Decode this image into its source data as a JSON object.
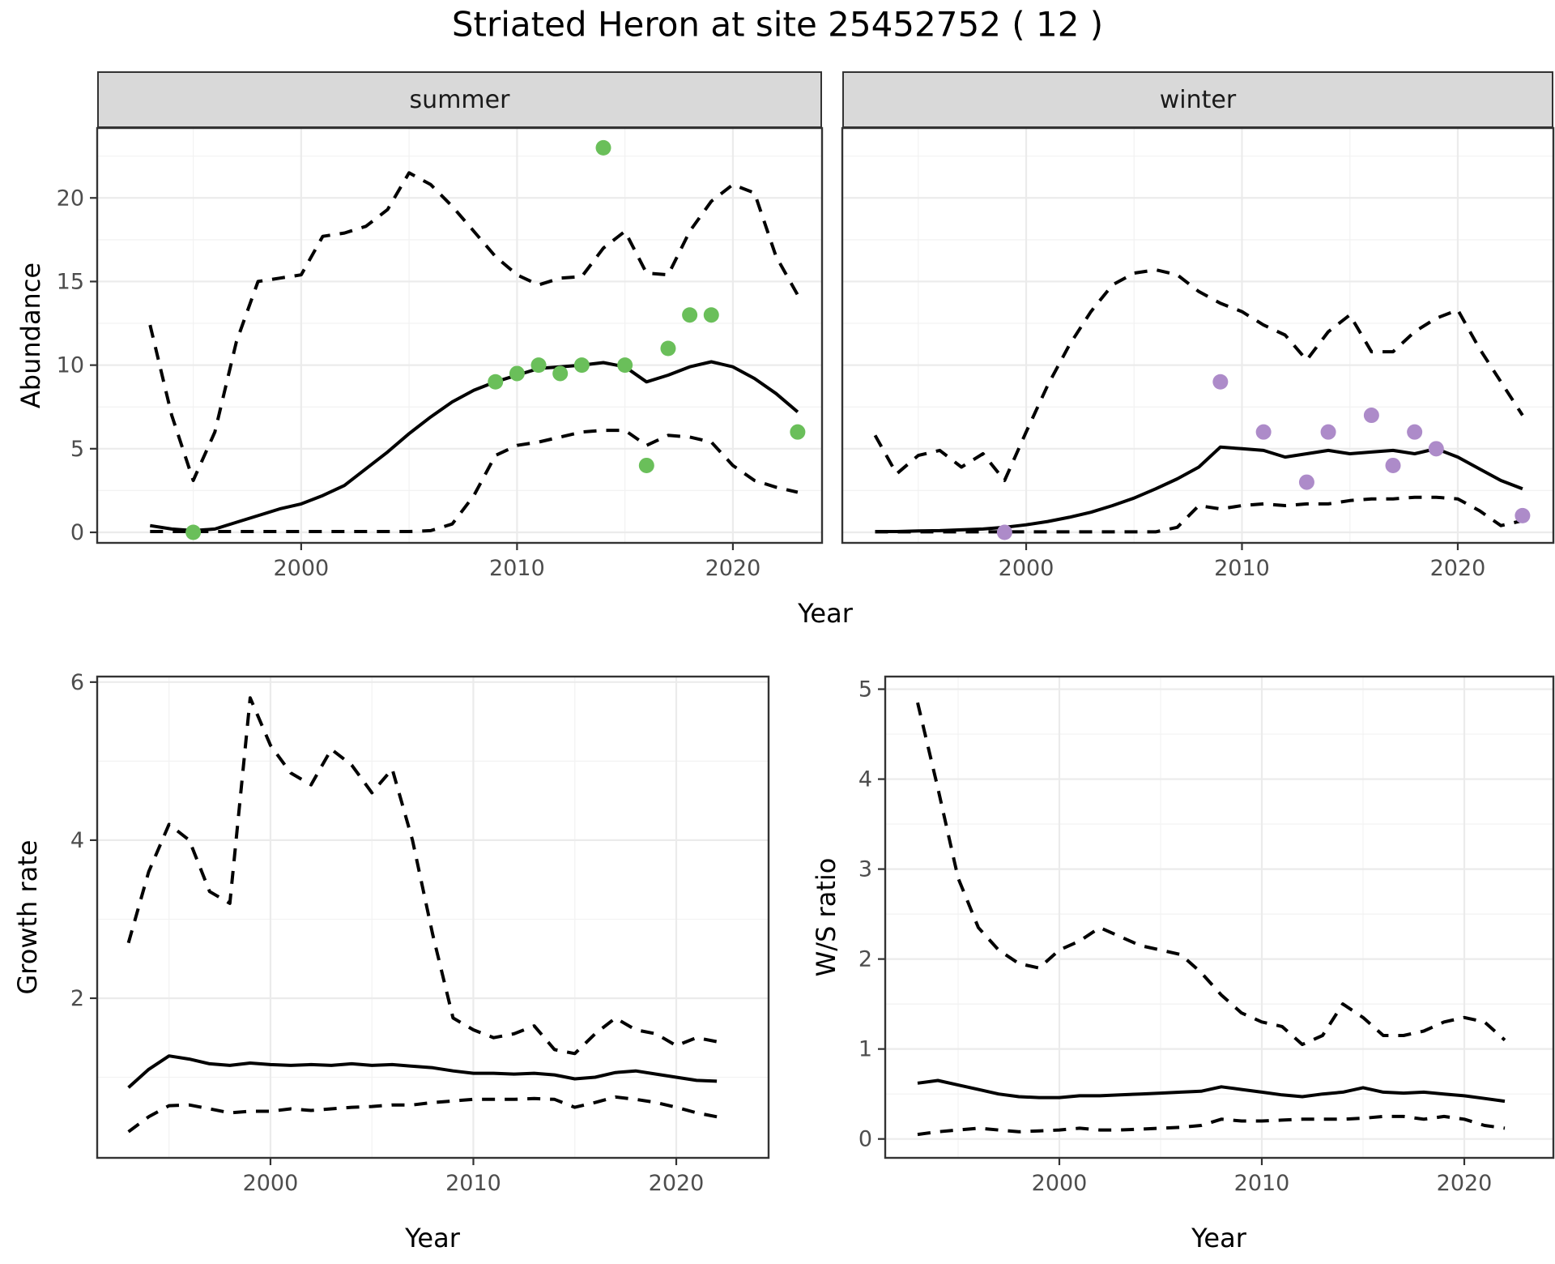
{
  "title": "Striated Heron at site 25452752 ( 12 )",
  "axes": {
    "y_top": "Abundance",
    "x_top": "Year",
    "y_bottom_left": "Growth rate",
    "y_bottom_right": "W/S ratio",
    "x_bottom_left": "Year",
    "x_bottom_right": "Year"
  },
  "colors": {
    "summer_point": "#6abf5a",
    "winter_point": "#ad8bc9",
    "line": "#000000",
    "strip_bg": "#d9d9d9",
    "panel_border": "#333333",
    "grid_major": "#ebebeb",
    "grid_minor": "#f2f2f2",
    "tick_text": "#4d4d4d"
  },
  "chart_data": [
    {
      "type": "line",
      "name": "abundance-summer",
      "facet_label": "summer",
      "xlabel": "Year",
      "ylabel": "Abundance",
      "xlim": [
        1990.55,
        2024.13
      ],
      "ylim": [
        -0.63,
        24.18
      ],
      "x_ticks": [
        2000,
        2010,
        2020
      ],
      "x_minor": [
        1995,
        2005,
        2015
      ],
      "y_ticks": [
        0,
        5,
        10,
        15,
        20
      ],
      "y_minor": [
        2.5,
        7.5,
        12.5,
        17.5,
        22.5
      ],
      "grid": true,
      "legend": "none",
      "series": [
        {
          "name": "upper-95ci",
          "style": "dashed",
          "color": "#000000",
          "x": [
            1993,
            1994,
            1995,
            1996,
            1997,
            1998,
            1999,
            2000,
            2001,
            2002,
            2003,
            2004,
            2005,
            2006,
            2007,
            2008,
            2009,
            2010,
            2011,
            2012,
            2013,
            2014,
            2015,
            2016,
            2017,
            2018,
            2019,
            2020,
            2021,
            2022,
            2023
          ],
          "y": [
            12.4,
            7.0,
            3.1,
            6.0,
            11.4,
            15.0,
            15.2,
            15.4,
            17.7,
            17.9,
            18.3,
            19.3,
            21.5,
            20.8,
            19.5,
            18.0,
            16.5,
            15.4,
            14.8,
            15.2,
            15.3,
            17.0,
            18.0,
            15.5,
            15.4,
            18.0,
            19.8,
            20.8,
            20.3,
            16.5,
            14.2
          ]
        },
        {
          "name": "fit",
          "style": "solid",
          "color": "#000000",
          "x": [
            1993,
            1994,
            1995,
            1996,
            1997,
            1998,
            1999,
            2000,
            2001,
            2002,
            2003,
            2004,
            2005,
            2006,
            2007,
            2008,
            2009,
            2010,
            2011,
            2012,
            2013,
            2014,
            2015,
            2016,
            2017,
            2018,
            2019,
            2020,
            2021,
            2022,
            2023
          ],
          "y": [
            0.4,
            0.2,
            0.1,
            0.2,
            0.6,
            1.0,
            1.4,
            1.7,
            2.2,
            2.8,
            3.8,
            4.8,
            5.9,
            6.9,
            7.8,
            8.5,
            9.0,
            9.4,
            9.8,
            9.9,
            10.0,
            10.15,
            9.9,
            9.0,
            9.4,
            9.9,
            10.2,
            9.9,
            9.2,
            8.3,
            7.2
          ]
        },
        {
          "name": "lower-95ci",
          "style": "dashed",
          "color": "#000000",
          "x": [
            1993,
            1994,
            1995,
            1996,
            1997,
            1998,
            1999,
            2000,
            2001,
            2002,
            2003,
            2004,
            2005,
            2006,
            2007,
            2008,
            2009,
            2010,
            2011,
            2012,
            2013,
            2014,
            2015,
            2016,
            2017,
            2018,
            2019,
            2020,
            2021,
            2022,
            2023
          ],
          "y": [
            0.05,
            0.05,
            0.05,
            0.05,
            0.05,
            0.05,
            0.05,
            0.05,
            0.05,
            0.05,
            0.05,
            0.05,
            0.05,
            0.1,
            0.5,
            2.2,
            4.6,
            5.2,
            5.4,
            5.7,
            6.0,
            6.1,
            6.1,
            5.2,
            5.8,
            5.7,
            5.4,
            4.0,
            3.1,
            2.7,
            2.4
          ]
        },
        {
          "name": "observations",
          "style": "points",
          "color": "#6abf5a",
          "x": [
            1995,
            2009,
            2010,
            2011,
            2012,
            2013,
            2014,
            2015,
            2016,
            2017,
            2018,
            2019,
            2023
          ],
          "y": [
            0,
            9,
            9.5,
            10,
            9.5,
            10,
            23,
            10,
            4,
            11,
            13,
            13,
            6
          ]
        }
      ]
    },
    {
      "type": "line",
      "name": "abundance-winter",
      "facet_label": "winter",
      "xlabel": "Year",
      "ylabel": "Abundance",
      "xlim": [
        1991.48,
        2024.43
      ],
      "ylim": [
        -0.63,
        24.18
      ],
      "x_ticks": [
        2000,
        2010,
        2020
      ],
      "x_minor": [
        1995,
        2005,
        2015
      ],
      "y_ticks": [
        0,
        5,
        10,
        15,
        20
      ],
      "y_minor": [
        2.5,
        7.5,
        12.5,
        17.5,
        22.5
      ],
      "grid": true,
      "legend": "none",
      "series": [
        {
          "name": "upper-95ci",
          "style": "dashed",
          "color": "#000000",
          "x": [
            1993,
            1994,
            1995,
            1996,
            1997,
            1998,
            1999,
            2000,
            2001,
            2002,
            2003,
            2004,
            2005,
            2006,
            2007,
            2008,
            2009,
            2010,
            2011,
            2012,
            2013,
            2014,
            2015,
            2016,
            2017,
            2018,
            2019,
            2020,
            2021,
            2022,
            2023
          ],
          "y": [
            5.8,
            3.5,
            4.6,
            4.9,
            3.9,
            4.7,
            3.1,
            6.0,
            8.8,
            11.2,
            13.2,
            14.8,
            15.5,
            15.7,
            15.4,
            14.4,
            13.7,
            13.2,
            12.4,
            11.8,
            10.3,
            12.0,
            13.0,
            10.8,
            10.8,
            12.0,
            12.8,
            13.3,
            11.0,
            9.0,
            7.0
          ]
        },
        {
          "name": "fit",
          "style": "solid",
          "color": "#000000",
          "x": [
            1993,
            1994,
            1995,
            1996,
            1997,
            1998,
            1999,
            2000,
            2001,
            2002,
            2003,
            2004,
            2005,
            2006,
            2007,
            2008,
            2009,
            2010,
            2011,
            2012,
            2013,
            2014,
            2015,
            2016,
            2017,
            2018,
            2019,
            2020,
            2021,
            2022,
            2023
          ],
          "y": [
            0.05,
            0.05,
            0.08,
            0.1,
            0.15,
            0.2,
            0.3,
            0.45,
            0.65,
            0.9,
            1.2,
            1.6,
            2.05,
            2.6,
            3.2,
            3.9,
            5.1,
            5.0,
            4.9,
            4.5,
            4.7,
            4.9,
            4.7,
            4.8,
            4.9,
            4.7,
            5.0,
            4.5,
            3.8,
            3.1,
            2.6
          ]
        },
        {
          "name": "lower-95ci",
          "style": "dashed",
          "color": "#000000",
          "x": [
            1993,
            1994,
            1995,
            1996,
            1997,
            1998,
            1999,
            2000,
            2001,
            2002,
            2003,
            2004,
            2005,
            2006,
            2007,
            2008,
            2009,
            2010,
            2011,
            2012,
            2013,
            2014,
            2015,
            2016,
            2017,
            2018,
            2019,
            2020,
            2021,
            2022,
            2023
          ],
          "y": [
            0.03,
            0.03,
            0.03,
            0.03,
            0.03,
            0.03,
            0.03,
            0.03,
            0.03,
            0.03,
            0.03,
            0.03,
            0.03,
            0.03,
            0.3,
            1.6,
            1.4,
            1.6,
            1.7,
            1.6,
            1.7,
            1.7,
            1.9,
            2.0,
            2.0,
            2.1,
            2.1,
            2.0,
            1.3,
            0.4,
            0.7
          ]
        },
        {
          "name": "observations",
          "style": "points",
          "color": "#ad8bc9",
          "x": [
            1999,
            2009,
            2011,
            2013,
            2014,
            2016,
            2017,
            2018,
            2019,
            2023
          ],
          "y": [
            0,
            9,
            6,
            3,
            6,
            7,
            4,
            6,
            5,
            1
          ]
        }
      ]
    },
    {
      "type": "line",
      "name": "growth-rate",
      "facet_label": "",
      "xlabel": "Year",
      "ylabel": "Growth rate",
      "xlim": [
        1991.46,
        2024.55
      ],
      "ylim": [
        -0.02,
        6.07
      ],
      "x_ticks": [
        2000,
        2010,
        2020
      ],
      "x_minor": [
        1995,
        2005,
        2015
      ],
      "y_ticks": [
        2,
        4,
        6
      ],
      "y_minor": [
        1,
        3,
        5
      ],
      "grid": true,
      "legend": "none",
      "series": [
        {
          "name": "upper-95ci",
          "style": "dashed",
          "color": "#000000",
          "x": [
            1993,
            1994,
            1995,
            1996,
            1997,
            1998,
            1999,
            2000,
            2001,
            2002,
            2003,
            2004,
            2005,
            2006,
            2007,
            2008,
            2009,
            2010,
            2011,
            2012,
            2013,
            2014,
            2015,
            2016,
            2017,
            2018,
            2019,
            2020,
            2021,
            2022
          ],
          "y": [
            2.7,
            3.6,
            4.2,
            4.0,
            3.35,
            3.2,
            5.8,
            5.2,
            4.85,
            4.7,
            5.15,
            4.95,
            4.6,
            4.9,
            4.0,
            2.8,
            1.75,
            1.6,
            1.5,
            1.55,
            1.65,
            1.35,
            1.3,
            1.55,
            1.75,
            1.6,
            1.55,
            1.4,
            1.5,
            1.45
          ]
        },
        {
          "name": "fit",
          "style": "solid",
          "color": "#000000",
          "x": [
            1993,
            1994,
            1995,
            1996,
            1997,
            1998,
            1999,
            2000,
            2001,
            2002,
            2003,
            2004,
            2005,
            2006,
            2007,
            2008,
            2009,
            2010,
            2011,
            2012,
            2013,
            2014,
            2015,
            2016,
            2017,
            2018,
            2019,
            2020,
            2021,
            2022
          ],
          "y": [
            0.87,
            1.1,
            1.27,
            1.23,
            1.17,
            1.15,
            1.18,
            1.16,
            1.15,
            1.16,
            1.15,
            1.17,
            1.15,
            1.16,
            1.14,
            1.12,
            1.08,
            1.05,
            1.05,
            1.04,
            1.05,
            1.03,
            0.98,
            1.0,
            1.06,
            1.08,
            1.04,
            1.0,
            0.96,
            0.95
          ]
        },
        {
          "name": "lower-95ci",
          "style": "dashed",
          "color": "#000000",
          "x": [
            1993,
            1994,
            1995,
            1996,
            1997,
            1998,
            1999,
            2000,
            2001,
            2002,
            2003,
            2004,
            2005,
            2006,
            2007,
            2008,
            2009,
            2010,
            2011,
            2012,
            2013,
            2014,
            2015,
            2016,
            2017,
            2018,
            2019,
            2020,
            2021,
            2022
          ],
          "y": [
            0.31,
            0.5,
            0.64,
            0.65,
            0.6,
            0.55,
            0.57,
            0.57,
            0.6,
            0.58,
            0.6,
            0.62,
            0.63,
            0.65,
            0.65,
            0.68,
            0.7,
            0.72,
            0.72,
            0.72,
            0.73,
            0.72,
            0.62,
            0.68,
            0.75,
            0.72,
            0.68,
            0.62,
            0.55,
            0.5
          ]
        }
      ]
    },
    {
      "type": "line",
      "name": "ws-ratio",
      "facet_label": "",
      "xlabel": "Year",
      "ylabel": "W/S ratio",
      "xlim": [
        1991.4,
        2024.4
      ],
      "ylim": [
        -0.21,
        5.14
      ],
      "x_ticks": [
        2000,
        2010,
        2020
      ],
      "x_minor": [
        1995,
        2005,
        2015
      ],
      "y_ticks": [
        0,
        1,
        2,
        3,
        4,
        5
      ],
      "y_minor": [
        0.5,
        1.5,
        2.5,
        3.5,
        4.5
      ],
      "grid": true,
      "legend": "none",
      "series": [
        {
          "name": "upper-95ci",
          "style": "dashed",
          "color": "#000000",
          "x": [
            1993,
            1994,
            1995,
            1996,
            1997,
            1998,
            1999,
            2000,
            2001,
            2002,
            2003,
            2004,
            2005,
            2006,
            2007,
            2008,
            2009,
            2010,
            2011,
            2012,
            2013,
            2014,
            2015,
            2016,
            2017,
            2018,
            2019,
            2020,
            2021,
            2022
          ],
          "y": [
            4.85,
            3.9,
            2.9,
            2.35,
            2.1,
            1.95,
            1.9,
            2.1,
            2.2,
            2.35,
            2.25,
            2.15,
            2.1,
            2.05,
            1.85,
            1.6,
            1.4,
            1.3,
            1.25,
            1.05,
            1.15,
            1.5,
            1.35,
            1.15,
            1.15,
            1.2,
            1.3,
            1.35,
            1.3,
            1.1
          ]
        },
        {
          "name": "fit",
          "style": "solid",
          "color": "#000000",
          "x": [
            1993,
            1994,
            1995,
            1996,
            1997,
            1998,
            1999,
            2000,
            2001,
            2002,
            2003,
            2004,
            2005,
            2006,
            2007,
            2008,
            2009,
            2010,
            2011,
            2012,
            2013,
            2014,
            2015,
            2016,
            2017,
            2018,
            2019,
            2020,
            2021,
            2022
          ],
          "y": [
            0.62,
            0.65,
            0.6,
            0.55,
            0.5,
            0.47,
            0.46,
            0.46,
            0.48,
            0.48,
            0.49,
            0.5,
            0.51,
            0.52,
            0.53,
            0.58,
            0.55,
            0.52,
            0.49,
            0.47,
            0.5,
            0.52,
            0.57,
            0.52,
            0.51,
            0.52,
            0.5,
            0.48,
            0.45,
            0.42
          ]
        },
        {
          "name": "lower-95ci",
          "style": "dashed",
          "color": "#000000",
          "x": [
            1993,
            1994,
            1995,
            1996,
            1997,
            1998,
            1999,
            2000,
            2001,
            2002,
            2003,
            2004,
            2005,
            2006,
            2007,
            2008,
            2009,
            2010,
            2011,
            2012,
            2013,
            2014,
            2015,
            2016,
            2017,
            2018,
            2019,
            2020,
            2021,
            2022
          ],
          "y": [
            0.05,
            0.08,
            0.1,
            0.12,
            0.1,
            0.08,
            0.09,
            0.1,
            0.12,
            0.1,
            0.1,
            0.11,
            0.12,
            0.13,
            0.15,
            0.22,
            0.2,
            0.2,
            0.21,
            0.22,
            0.22,
            0.22,
            0.23,
            0.25,
            0.25,
            0.22,
            0.25,
            0.22,
            0.15,
            0.12
          ]
        }
      ]
    }
  ]
}
